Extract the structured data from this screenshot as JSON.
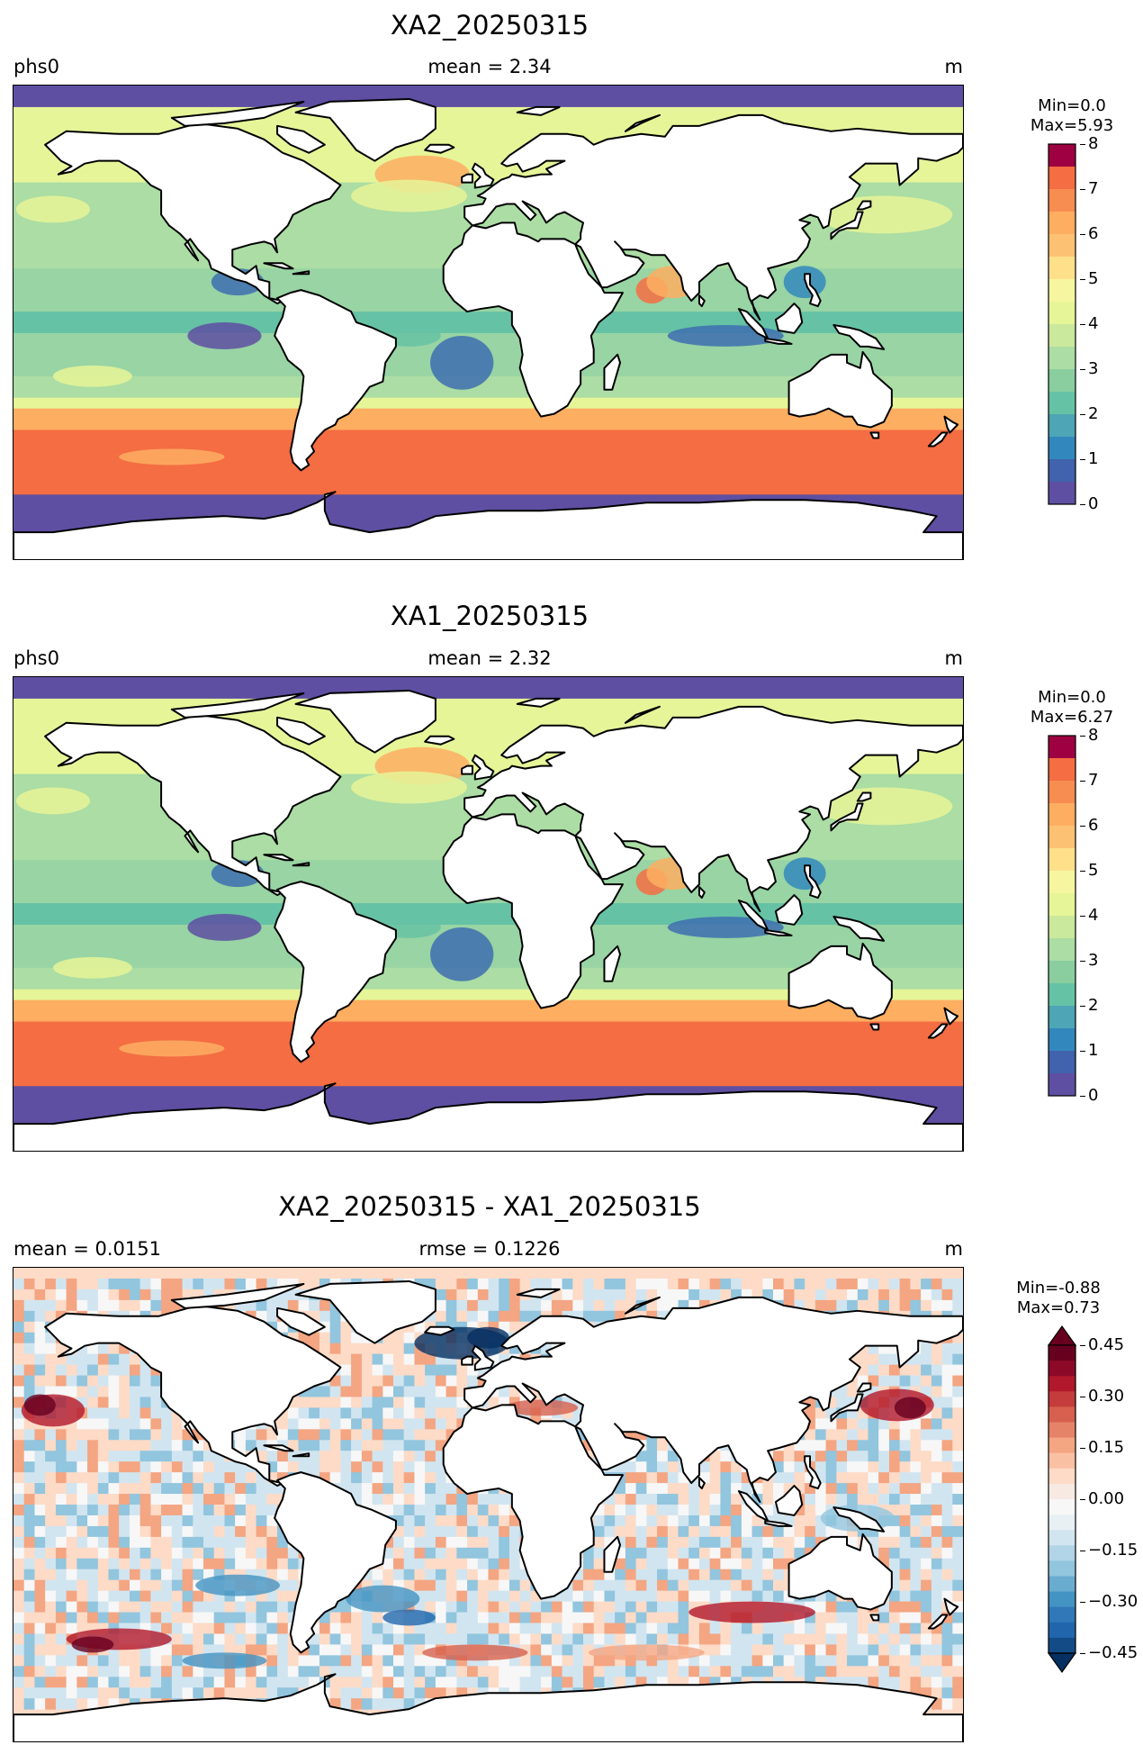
{
  "panels": [
    {
      "title": "XA2_20250315",
      "left_label": "phs0",
      "center_label": "mean = 2.34",
      "right_label": "m",
      "cbar_min": "Min=0.0",
      "cbar_max": "Max=5.93",
      "cbar_ticks": [
        "8",
        "7",
        "6",
        "5",
        "4",
        "3",
        "2",
        "1",
        "0"
      ],
      "colormap": "Spectral_r",
      "levels": [
        0,
        8
      ]
    },
    {
      "title": "XA1_20250315",
      "left_label": "phs0",
      "center_label": "mean = 2.32",
      "right_label": "m",
      "cbar_min": "Min=0.0",
      "cbar_max": "Max=6.27",
      "cbar_ticks": [
        "8",
        "7",
        "6",
        "5",
        "4",
        "3",
        "2",
        "1",
        "0"
      ],
      "colormap": "Spectral_r",
      "levels": [
        0,
        8
      ]
    },
    {
      "title": "XA2_20250315 - XA1_20250315",
      "left_label": "mean = 0.0151",
      "center_label": "rmse = 0.1226",
      "right_label": "m",
      "cbar_min": "Min=-0.88",
      "cbar_max": "Max=0.73",
      "cbar_ticks": [
        "0.45",
        "0.30",
        "0.15",
        "0.00",
        "−0.15",
        "−0.30",
        "−0.45"
      ],
      "colormap": "RdBu_r",
      "levels": [
        -0.5,
        0.5
      ]
    }
  ],
  "colors": {
    "spectral": [
      "#5e4fa2",
      "#3d6eb0",
      "#3288bd",
      "#66c2a5",
      "#98d4a4",
      "#abdda4",
      "#e6f598",
      "#fee08b",
      "#fdae61",
      "#f46d43",
      "#d53e4f",
      "#9e0142"
    ],
    "rdbu": [
      "#053061",
      "#2166ac",
      "#4393c3",
      "#92c5de",
      "#d1e5f0",
      "#f7f7f7",
      "#fddbc7",
      "#f4a582",
      "#d6604d",
      "#b2182b",
      "#67001f"
    ],
    "land": "#ffffff",
    "coast": "#000000"
  }
}
